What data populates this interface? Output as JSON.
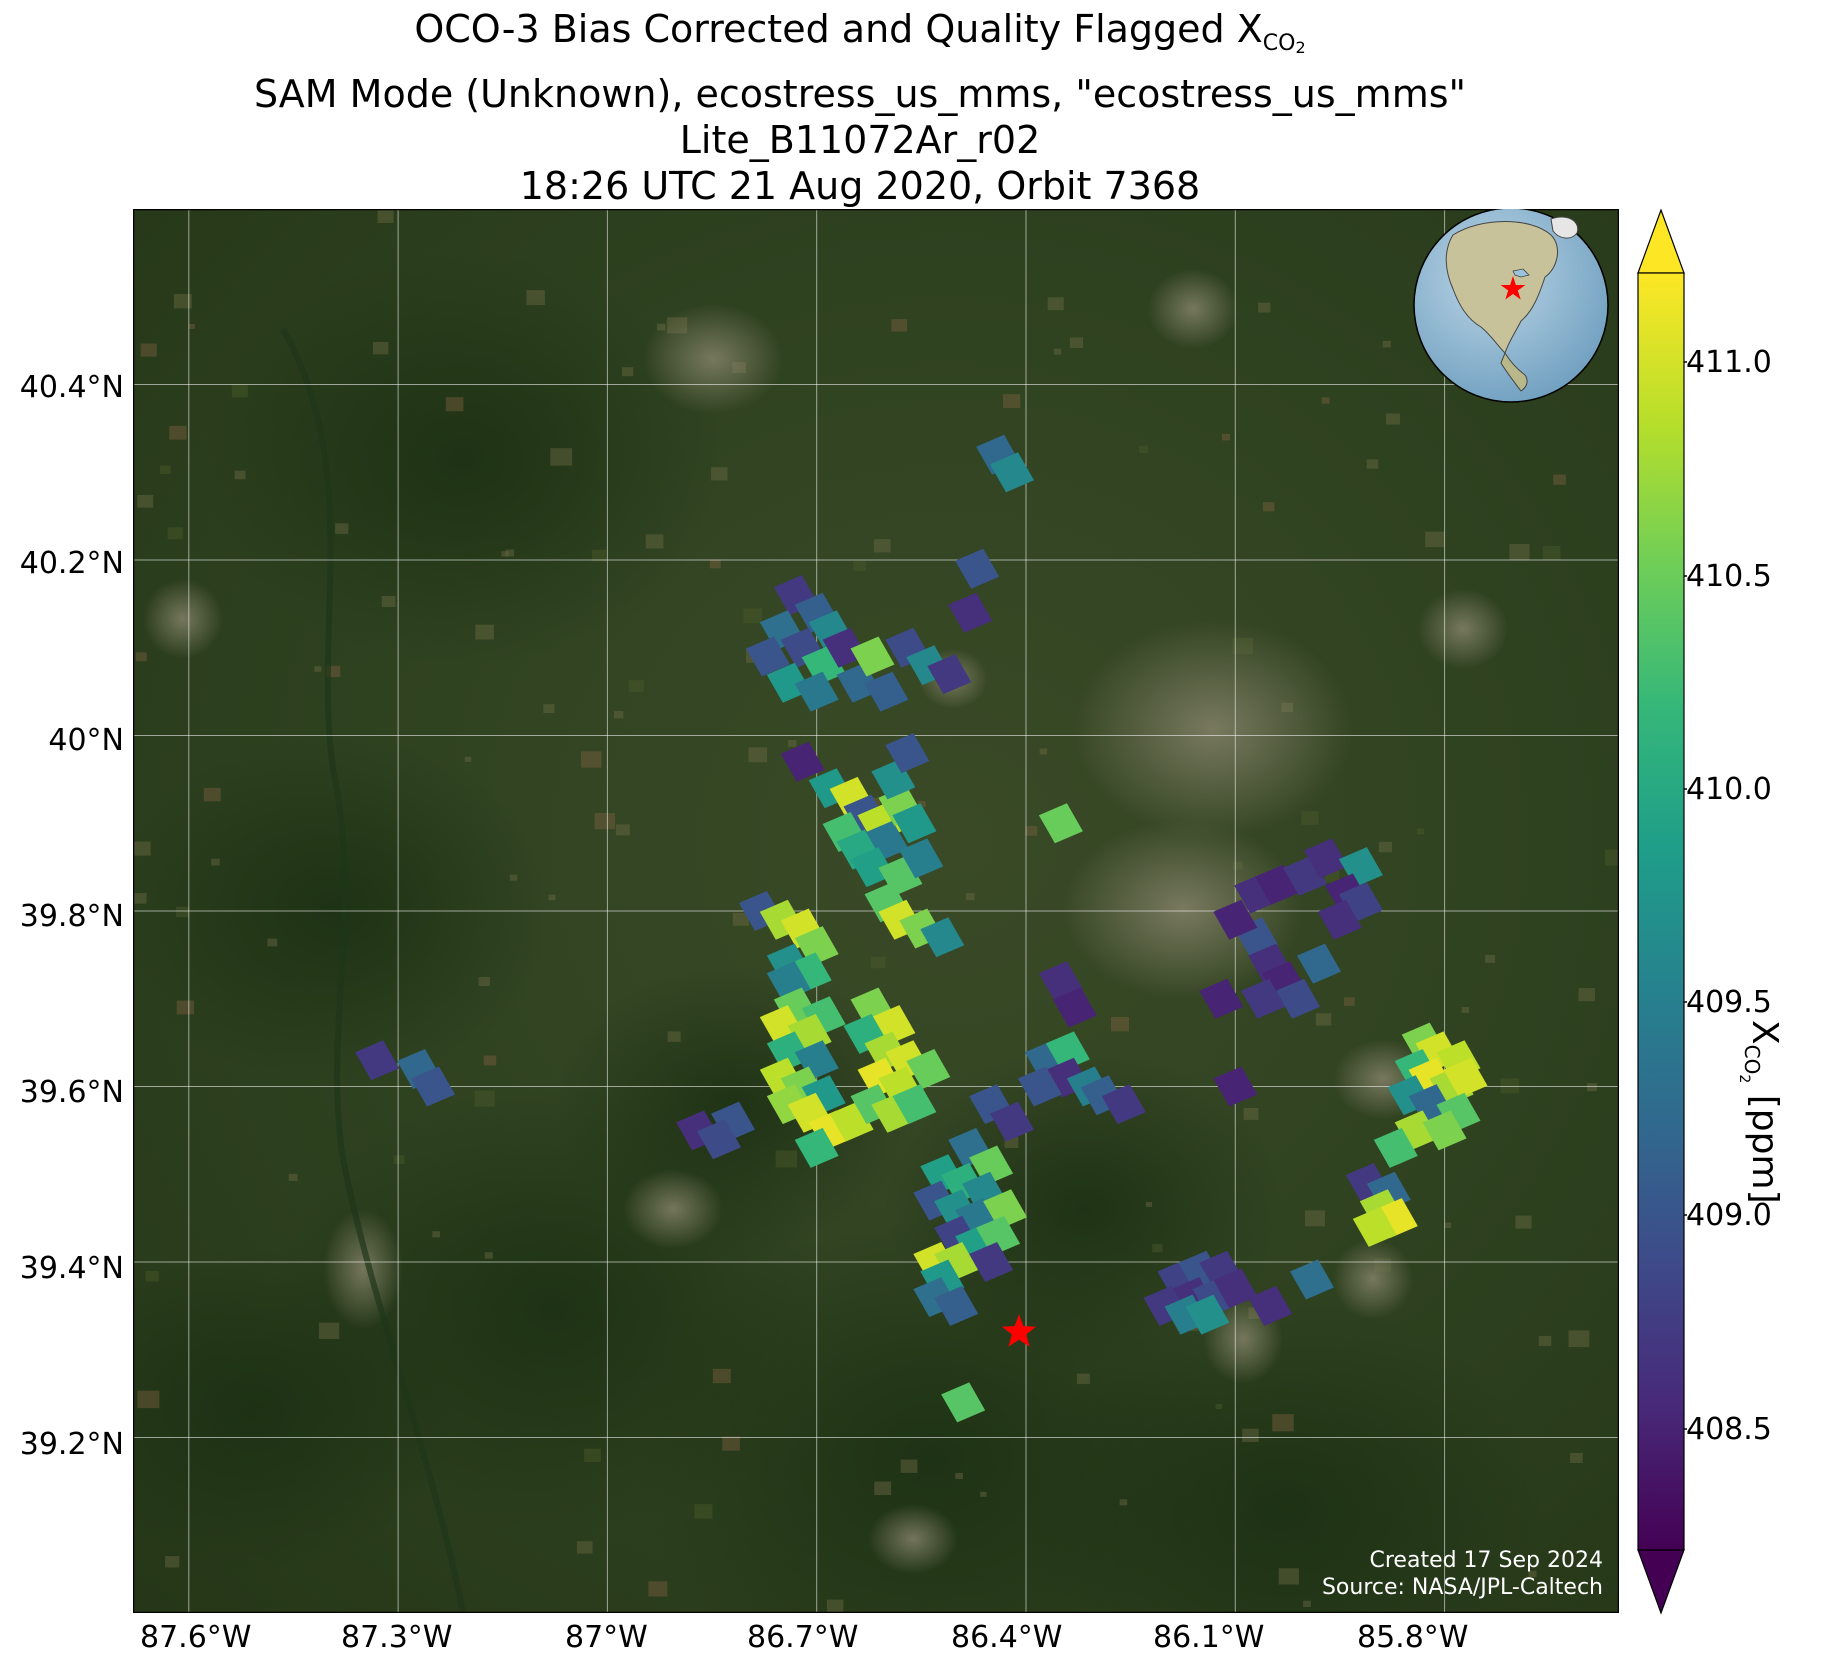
{
  "title": {
    "line1_prefix": "OCO-3 Bias Corrected and Quality Flagged X",
    "line1_sub": "CO",
    "line1_sub2": "2",
    "line2": "SAM Mode (Unknown), ecostress_us_mms, \"ecostress_us_mms\"",
    "line3": "Lite_B11072Ar_r02",
    "line4": "18:26 UTC 21 Aug 2020, Orbit 7368"
  },
  "axes": {
    "lon_ticks": [
      "87.6°W",
      "87.3°W",
      "87°W",
      "86.7°W",
      "86.4°W",
      "86.1°W",
      "85.8°W"
    ],
    "lat_ticks": [
      "40.4°N",
      "40.2°N",
      "40°N",
      "39.8°N",
      "39.6°N",
      "39.4°N",
      "39.2°N"
    ]
  },
  "credits": {
    "created": "Created 17 Sep 2024",
    "source": "Source: NASA/JPL-Caltech"
  },
  "colorbar": {
    "ticks": [
      "411.0",
      "410.5",
      "410.0",
      "409.5",
      "409.0",
      "408.5"
    ],
    "label_prefix": "X",
    "label_sub": "CO",
    "label_sub2": "2",
    "label_suffix": " [ppm]",
    "colormap": "viridis",
    "range": [
      408.2,
      411.2
    ],
    "extend": "both"
  },
  "colors": {
    "map_background": "#2b3d1c",
    "target_marker": "#ff0000",
    "grid": "#ffffff"
  },
  "map_data": {
    "extent_lon": [
      -87.68,
      -85.55
    ],
    "extent_lat": [
      39.0,
      40.6
    ],
    "target_marker": {
      "lon": -86.41,
      "lat": 39.32
    },
    "soundings": [
      {
        "lon": -86.73,
        "lat": 40.16,
        "v": 408.7
      },
      {
        "lon": -86.7,
        "lat": 40.14,
        "v": 409.1
      },
      {
        "lon": -86.68,
        "lat": 40.12,
        "v": 409.6
      },
      {
        "lon": -86.75,
        "lat": 40.12,
        "v": 409.3
      },
      {
        "lon": -86.72,
        "lat": 40.1,
        "v": 408.9
      },
      {
        "lon": -86.69,
        "lat": 40.08,
        "v": 410.2
      },
      {
        "lon": -86.66,
        "lat": 40.1,
        "v": 408.6
      },
      {
        "lon": -86.77,
        "lat": 40.09,
        "v": 409.0
      },
      {
        "lon": -86.74,
        "lat": 40.06,
        "v": 409.8
      },
      {
        "lon": -86.7,
        "lat": 40.05,
        "v": 409.4
      },
      {
        "lon": -86.64,
        "lat": 40.06,
        "v": 409.2
      },
      {
        "lon": -86.62,
        "lat": 40.09,
        "v": 410.6
      },
      {
        "lon": -86.57,
        "lat": 40.1,
        "v": 408.9
      },
      {
        "lon": -86.54,
        "lat": 40.08,
        "v": 409.6
      },
      {
        "lon": -86.51,
        "lat": 40.07,
        "v": 408.7
      },
      {
        "lon": -86.6,
        "lat": 40.05,
        "v": 409.1
      },
      {
        "lon": -86.47,
        "lat": 40.19,
        "v": 409.0
      },
      {
        "lon": -86.48,
        "lat": 40.14,
        "v": 408.6
      },
      {
        "lon": -86.44,
        "lat": 40.32,
        "v": 409.2
      },
      {
        "lon": -86.42,
        "lat": 40.3,
        "v": 409.6
      },
      {
        "lon": -86.72,
        "lat": 39.97,
        "v": 408.5
      },
      {
        "lon": -86.68,
        "lat": 39.94,
        "v": 409.8
      },
      {
        "lon": -86.65,
        "lat": 39.93,
        "v": 411.0
      },
      {
        "lon": -86.63,
        "lat": 39.91,
        "v": 409.0
      },
      {
        "lon": -86.66,
        "lat": 39.89,
        "v": 410.3
      },
      {
        "lon": -86.61,
        "lat": 39.9,
        "v": 410.9
      },
      {
        "lon": -86.6,
        "lat": 39.88,
        "v": 409.4
      },
      {
        "lon": -86.64,
        "lat": 39.87,
        "v": 410.0
      },
      {
        "lon": -86.58,
        "lat": 39.92,
        "v": 410.6
      },
      {
        "lon": -86.59,
        "lat": 39.95,
        "v": 409.7
      },
      {
        "lon": -86.62,
        "lat": 39.85,
        "v": 409.9
      },
      {
        "lon": -86.58,
        "lat": 39.84,
        "v": 410.4
      },
      {
        "lon": -86.55,
        "lat": 39.86,
        "v": 409.5
      },
      {
        "lon": -86.57,
        "lat": 39.98,
        "v": 409.0
      },
      {
        "lon": -86.56,
        "lat": 39.9,
        "v": 409.8
      },
      {
        "lon": -86.35,
        "lat": 39.9,
        "v": 410.5
      },
      {
        "lon": -86.78,
        "lat": 39.8,
        "v": 409.0
      },
      {
        "lon": -86.75,
        "lat": 39.79,
        "v": 410.8
      },
      {
        "lon": -86.72,
        "lat": 39.78,
        "v": 411.0
      },
      {
        "lon": -86.7,
        "lat": 39.76,
        "v": 410.6
      },
      {
        "lon": -86.74,
        "lat": 39.74,
        "v": 409.7
      },
      {
        "lon": -86.71,
        "lat": 39.73,
        "v": 410.2
      },
      {
        "lon": -86.74,
        "lat": 39.72,
        "v": 409.5
      },
      {
        "lon": -86.6,
        "lat": 39.81,
        "v": 410.4
      },
      {
        "lon": -86.58,
        "lat": 39.79,
        "v": 411.0
      },
      {
        "lon": -86.55,
        "lat": 39.78,
        "v": 410.6
      },
      {
        "lon": -86.52,
        "lat": 39.77,
        "v": 409.6
      },
      {
        "lon": -86.73,
        "lat": 39.69,
        "v": 410.5
      },
      {
        "lon": -86.69,
        "lat": 39.68,
        "v": 410.3
      },
      {
        "lon": -86.75,
        "lat": 39.67,
        "v": 411.0
      },
      {
        "lon": -86.71,
        "lat": 39.66,
        "v": 410.8
      },
      {
        "lon": -86.74,
        "lat": 39.64,
        "v": 410.1
      },
      {
        "lon": -86.7,
        "lat": 39.63,
        "v": 409.5
      },
      {
        "lon": -86.75,
        "lat": 39.61,
        "v": 410.9
      },
      {
        "lon": -86.72,
        "lat": 39.6,
        "v": 410.6
      },
      {
        "lon": -86.69,
        "lat": 39.59,
        "v": 409.8
      },
      {
        "lon": -86.74,
        "lat": 39.58,
        "v": 410.7
      },
      {
        "lon": -86.71,
        "lat": 39.57,
        "v": 411.0
      },
      {
        "lon": -86.68,
        "lat": 39.55,
        "v": 411.1
      },
      {
        "lon": -86.65,
        "lat": 39.56,
        "v": 410.9
      },
      {
        "lon": -86.7,
        "lat": 39.53,
        "v": 410.2
      },
      {
        "lon": -86.62,
        "lat": 39.69,
        "v": 410.6
      },
      {
        "lon": -86.59,
        "lat": 39.67,
        "v": 411.0
      },
      {
        "lon": -86.63,
        "lat": 39.66,
        "v": 410.1
      },
      {
        "lon": -86.6,
        "lat": 39.64,
        "v": 410.8
      },
      {
        "lon": -86.57,
        "lat": 39.63,
        "v": 411.0
      },
      {
        "lon": -86.54,
        "lat": 39.62,
        "v": 410.5
      },
      {
        "lon": -86.61,
        "lat": 39.61,
        "v": 411.1
      },
      {
        "lon": -86.58,
        "lat": 39.6,
        "v": 410.9
      },
      {
        "lon": -86.62,
        "lat": 39.58,
        "v": 410.4
      },
      {
        "lon": -86.59,
        "lat": 39.57,
        "v": 410.8
      },
      {
        "lon": -86.56,
        "lat": 39.58,
        "v": 410.3
      },
      {
        "lon": -86.82,
        "lat": 39.56,
        "v": 409.0
      },
      {
        "lon": -86.87,
        "lat": 39.55,
        "v": 408.6
      },
      {
        "lon": -86.84,
        "lat": 39.54,
        "v": 408.9
      },
      {
        "lon": -87.33,
        "lat": 39.63,
        "v": 408.7
      },
      {
        "lon": -87.27,
        "lat": 39.62,
        "v": 409.2
      },
      {
        "lon": -87.25,
        "lat": 39.6,
        "v": 409.0
      },
      {
        "lon": -86.45,
        "lat": 39.58,
        "v": 409.0
      },
      {
        "lon": -86.42,
        "lat": 39.56,
        "v": 408.7
      },
      {
        "lon": -86.48,
        "lat": 39.53,
        "v": 409.3
      },
      {
        "lon": -86.45,
        "lat": 39.51,
        "v": 410.5
      },
      {
        "lon": -86.52,
        "lat": 39.5,
        "v": 409.9
      },
      {
        "lon": -86.49,
        "lat": 39.49,
        "v": 410.1
      },
      {
        "lon": -86.46,
        "lat": 39.48,
        "v": 409.6
      },
      {
        "lon": -86.53,
        "lat": 39.47,
        "v": 409.0
      },
      {
        "lon": -86.5,
        "lat": 39.46,
        "v": 409.7
      },
      {
        "lon": -86.47,
        "lat": 39.45,
        "v": 409.4
      },
      {
        "lon": -86.43,
        "lat": 39.46,
        "v": 410.6
      },
      {
        "lon": -86.5,
        "lat": 39.43,
        "v": 408.8
      },
      {
        "lon": -86.47,
        "lat": 39.42,
        "v": 409.9
      },
      {
        "lon": -86.44,
        "lat": 39.43,
        "v": 410.4
      },
      {
        "lon": -86.53,
        "lat": 39.4,
        "v": 411.0
      },
      {
        "lon": -86.5,
        "lat": 39.4,
        "v": 410.8
      },
      {
        "lon": -86.45,
        "lat": 39.4,
        "v": 408.7
      },
      {
        "lon": -86.52,
        "lat": 39.38,
        "v": 409.8
      },
      {
        "lon": -86.53,
        "lat": 39.36,
        "v": 409.3
      },
      {
        "lon": -86.5,
        "lat": 39.35,
        "v": 409.1
      },
      {
        "lon": -86.49,
        "lat": 39.24,
        "v": 410.4
      },
      {
        "lon": -86.37,
        "lat": 39.63,
        "v": 409.2
      },
      {
        "lon": -86.34,
        "lat": 39.64,
        "v": 410.2
      },
      {
        "lon": -86.34,
        "lat": 39.61,
        "v": 408.6
      },
      {
        "lon": -86.31,
        "lat": 39.6,
        "v": 409.5
      },
      {
        "lon": -86.38,
        "lat": 39.6,
        "v": 409.0
      },
      {
        "lon": -86.29,
        "lat": 39.59,
        "v": 409.1
      },
      {
        "lon": -86.26,
        "lat": 39.58,
        "v": 408.7
      },
      {
        "lon": -86.35,
        "lat": 39.72,
        "v": 408.6
      },
      {
        "lon": -86.33,
        "lat": 39.69,
        "v": 408.5
      },
      {
        "lon": -86.1,
        "lat": 39.6,
        "v": 408.5
      },
      {
        "lon": -86.18,
        "lat": 39.38,
        "v": 408.8
      },
      {
        "lon": -86.15,
        "lat": 39.39,
        "v": 409.0
      },
      {
        "lon": -86.12,
        "lat": 39.39,
        "v": 408.7
      },
      {
        "lon": -86.16,
        "lat": 39.36,
        "v": 408.6
      },
      {
        "lon": -86.13,
        "lat": 39.36,
        "v": 408.9
      },
      {
        "lon": -86.1,
        "lat": 39.37,
        "v": 408.6
      },
      {
        "lon": -86.2,
        "lat": 39.35,
        "v": 408.7
      },
      {
        "lon": -86.17,
        "lat": 39.34,
        "v": 409.5
      },
      {
        "lon": -86.14,
        "lat": 39.34,
        "v": 409.7
      },
      {
        "lon": -86.05,
        "lat": 39.35,
        "v": 408.6
      },
      {
        "lon": -85.99,
        "lat": 39.38,
        "v": 409.3
      },
      {
        "lon": -86.07,
        "lat": 39.82,
        "v": 408.6
      },
      {
        "lon": -86.04,
        "lat": 39.83,
        "v": 408.5
      },
      {
        "lon": -86.0,
        "lat": 39.84,
        "v": 408.7
      },
      {
        "lon": -85.97,
        "lat": 39.86,
        "v": 408.6
      },
      {
        "lon": -85.92,
        "lat": 39.85,
        "v": 409.7
      },
      {
        "lon": -85.94,
        "lat": 39.82,
        "v": 408.5
      },
      {
        "lon": -85.92,
        "lat": 39.81,
        "v": 408.8
      },
      {
        "lon": -85.95,
        "lat": 39.79,
        "v": 408.6
      },
      {
        "lon": -86.07,
        "lat": 39.77,
        "v": 409.0
      },
      {
        "lon": -86.1,
        "lat": 39.79,
        "v": 408.5
      },
      {
        "lon": -86.05,
        "lat": 39.74,
        "v": 408.6
      },
      {
        "lon": -86.03,
        "lat": 39.72,
        "v": 408.5
      },
      {
        "lon": -86.06,
        "lat": 39.7,
        "v": 408.7
      },
      {
        "lon": -86.01,
        "lat": 39.7,
        "v": 408.9
      },
      {
        "lon": -85.98,
        "lat": 39.74,
        "v": 409.2
      },
      {
        "lon": -86.12,
        "lat": 39.7,
        "v": 408.5
      },
      {
        "lon": -85.83,
        "lat": 39.65,
        "v": 410.6
      },
      {
        "lon": -85.81,
        "lat": 39.64,
        "v": 411.0
      },
      {
        "lon": -85.78,
        "lat": 39.63,
        "v": 410.9
      },
      {
        "lon": -85.84,
        "lat": 39.62,
        "v": 410.2
      },
      {
        "lon": -85.82,
        "lat": 39.61,
        "v": 411.1
      },
      {
        "lon": -85.79,
        "lat": 39.6,
        "v": 410.8
      },
      {
        "lon": -85.77,
        "lat": 39.61,
        "v": 411.0
      },
      {
        "lon": -85.85,
        "lat": 39.59,
        "v": 409.7
      },
      {
        "lon": -85.82,
        "lat": 39.58,
        "v": 409.2
      },
      {
        "lon": -85.78,
        "lat": 39.57,
        "v": 410.4
      },
      {
        "lon": -85.84,
        "lat": 39.55,
        "v": 410.8
      },
      {
        "lon": -85.8,
        "lat": 39.55,
        "v": 410.6
      },
      {
        "lon": -85.87,
        "lat": 39.53,
        "v": 410.3
      },
      {
        "lon": -85.91,
        "lat": 39.49,
        "v": 408.7
      },
      {
        "lon": -85.88,
        "lat": 39.48,
        "v": 409.2
      },
      {
        "lon": -85.89,
        "lat": 39.46,
        "v": 410.8
      },
      {
        "lon": -85.87,
        "lat": 39.45,
        "v": 411.1
      },
      {
        "lon": -85.9,
        "lat": 39.44,
        "v": 410.9
      }
    ]
  }
}
